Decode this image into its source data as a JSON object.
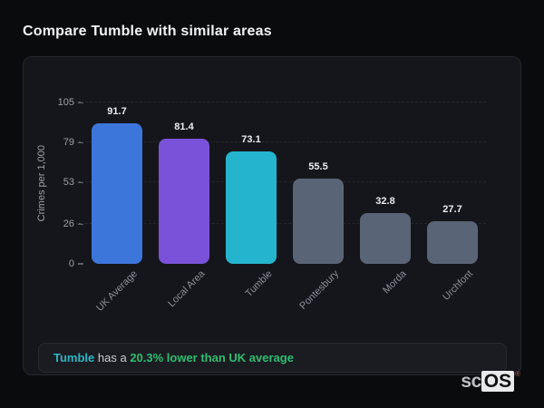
{
  "page": {
    "title": "Compare Tumble with similar areas"
  },
  "chart_data": {
    "type": "bar",
    "categories": [
      "UK Average",
      "Local Area",
      "Tumble",
      "Pontesbury",
      "Morda",
      "Urchfont"
    ],
    "values": [
      91.7,
      81.4,
      73.1,
      55.5,
      32.8,
      27.7
    ],
    "bar_colors": [
      "#3d76db",
      "#7a52d9",
      "#25b4ce",
      "#5a6477",
      "#5a6477",
      "#5a6477"
    ],
    "title": "",
    "xlabel": "",
    "ylabel": "Crimes per 1,000",
    "yticks": [
      0,
      26,
      53,
      79,
      105
    ],
    "ylim": [
      0,
      105
    ],
    "grid": "dashed horizontal gridlines",
    "legend": "none",
    "value_labels": true,
    "x_label_rotation": -45
  },
  "note": {
    "subject": "Tumble",
    "middle": " has a ",
    "highlight": "20.3% lower than UK average",
    "subject_color": "#2cb6c4",
    "highlight_color": "#2ebe70"
  },
  "logo": {
    "prefix": "sc",
    "suffix": "OS",
    "registered": "®"
  }
}
